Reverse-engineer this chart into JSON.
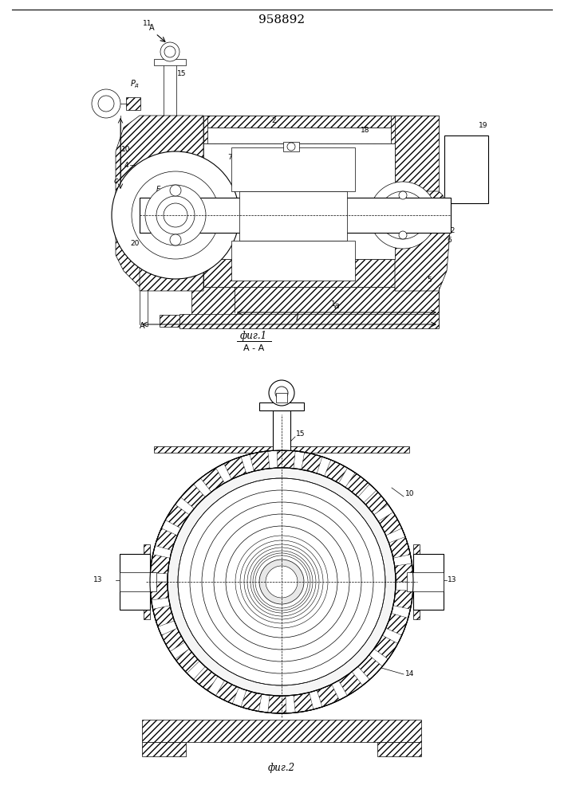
{
  "title": "958892",
  "fig1_label": "фиг.1",
  "fig2_label": "фиг.2",
  "section_label": "А - А",
  "bg_color": "#ffffff",
  "line_color": "#000000"
}
